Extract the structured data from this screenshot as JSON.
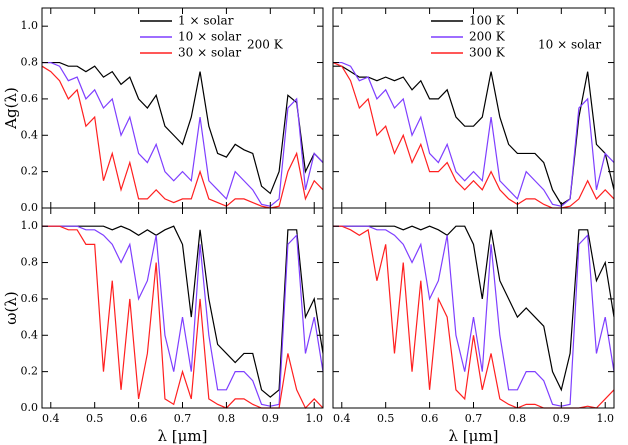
{
  "chart_data": [
    {
      "type": "line",
      "ylabel": "Ag(λ)",
      "annotation": "200 K",
      "legend": "upper center",
      "xlim": [
        0.38,
        1.02
      ],
      "ylim": [
        0,
        1.1
      ],
      "xticks": [
        0.4,
        0.5,
        0.6,
        0.7,
        0.8,
        0.9,
        {
          "value": 1,
          "label": "1.0"
        }
      ],
      "yticks": [
        {
          "value": 0,
          "label": "0.0"
        },
        0.2,
        0.4,
        0.6,
        0.8,
        {
          "value": 1,
          "label": "1.0"
        }
      ],
      "x": [
        0.38,
        0.4,
        0.42,
        0.44,
        0.46,
        0.48,
        0.5,
        0.52,
        0.54,
        0.56,
        0.58,
        0.6,
        0.62,
        0.64,
        0.66,
        0.68,
        0.7,
        0.72,
        0.74,
        0.76,
        0.78,
        0.8,
        0.82,
        0.84,
        0.86,
        0.88,
        0.9,
        0.92,
        0.94,
        0.96,
        0.98,
        1.0,
        1.02
      ],
      "series": [
        {
          "name": "1 × solar",
          "color": "#000000",
          "values": [
            0.8,
            0.8,
            0.8,
            0.78,
            0.78,
            0.75,
            0.78,
            0.72,
            0.75,
            0.68,
            0.72,
            0.6,
            0.55,
            0.62,
            0.45,
            0.4,
            0.35,
            0.5,
            0.75,
            0.45,
            0.3,
            0.28,
            0.35,
            0.32,
            0.3,
            0.12,
            0.08,
            0.2,
            0.62,
            0.58,
            0.2,
            0.3,
            0.25
          ]
        },
        {
          "name": "10 × solar",
          "color": "#7f3fff",
          "values": [
            0.8,
            0.8,
            0.78,
            0.7,
            0.72,
            0.6,
            0.65,
            0.55,
            0.6,
            0.4,
            0.5,
            0.3,
            0.25,
            0.35,
            0.2,
            0.15,
            0.2,
            0.15,
            0.5,
            0.15,
            0.1,
            0.05,
            0.2,
            0.15,
            0.1,
            0.02,
            0.01,
            0.05,
            0.55,
            0.6,
            0.1,
            0.3,
            0.25
          ]
        },
        {
          "name": "30 × solar",
          "color": "#ff2020",
          "values": [
            0.78,
            0.75,
            0.7,
            0.6,
            0.65,
            0.45,
            0.5,
            0.15,
            0.3,
            0.1,
            0.25,
            0.05,
            0.05,
            0.1,
            0.05,
            0.03,
            0.05,
            0.05,
            0.2,
            0.05,
            0.03,
            0.01,
            0.05,
            0.05,
            0.03,
            0.01,
            0,
            0.01,
            0.2,
            0.3,
            0.05,
            0.15,
            0.1
          ]
        }
      ]
    },
    {
      "type": "line",
      "annotation": "10 × solar",
      "legend": "upper center",
      "xlim": [
        0.38,
        1.02
      ],
      "ylim": [
        0,
        1.1
      ],
      "xticks": [
        0.4,
        0.5,
        0.6,
        0.7,
        0.8,
        0.9,
        {
          "value": 1,
          "label": "1.0"
        }
      ],
      "yticks": [
        0,
        0.2,
        0.4,
        0.6,
        0.8,
        1
      ],
      "x": [
        0.38,
        0.4,
        0.42,
        0.44,
        0.46,
        0.48,
        0.5,
        0.52,
        0.54,
        0.56,
        0.58,
        0.6,
        0.62,
        0.64,
        0.66,
        0.68,
        0.7,
        0.72,
        0.74,
        0.76,
        0.78,
        0.8,
        0.82,
        0.84,
        0.86,
        0.88,
        0.9,
        0.92,
        0.94,
        0.96,
        0.98,
        1.0,
        1.02
      ],
      "series": [
        {
          "name": "100 K",
          "color": "#000000",
          "values": [
            0.78,
            0.78,
            0.75,
            0.72,
            0.72,
            0.7,
            0.72,
            0.7,
            0.72,
            0.65,
            0.7,
            0.6,
            0.6,
            0.65,
            0.5,
            0.45,
            0.45,
            0.5,
            0.75,
            0.5,
            0.35,
            0.3,
            0.3,
            0.3,
            0.25,
            0.1,
            0.02,
            0.05,
            0.5,
            0.75,
            0.35,
            0.3,
            0.1
          ]
        },
        {
          "name": "200 K",
          "color": "#7f3fff",
          "values": [
            0.8,
            0.8,
            0.78,
            0.7,
            0.72,
            0.6,
            0.65,
            0.55,
            0.6,
            0.4,
            0.5,
            0.3,
            0.25,
            0.35,
            0.2,
            0.15,
            0.2,
            0.15,
            0.5,
            0.15,
            0.1,
            0.05,
            0.2,
            0.15,
            0.1,
            0.02,
            0.01,
            0.05,
            0.55,
            0.6,
            0.1,
            0.3,
            0.25
          ]
        },
        {
          "name": "300 K",
          "color": "#ff2020",
          "values": [
            0.8,
            0.78,
            0.7,
            0.55,
            0.6,
            0.4,
            0.45,
            0.3,
            0.4,
            0.25,
            0.35,
            0.2,
            0.2,
            0.25,
            0.15,
            0.1,
            0.15,
            0.1,
            0.2,
            0.1,
            0.05,
            0.02,
            0.05,
            0.05,
            0.02,
            0,
            0,
            0.01,
            0.05,
            0.15,
            0.05,
            0.1,
            0.05
          ]
        }
      ]
    },
    {
      "type": "line",
      "ylabel": "ω(λ)",
      "xlabel": "λ [μm]",
      "xlim": [
        0.38,
        1.02
      ],
      "ylim": [
        0,
        1.1
      ],
      "xticks": [
        0.4,
        0.5,
        0.6,
        0.7,
        0.8,
        0.9,
        {
          "value": 1,
          "label": "1.0"
        }
      ],
      "yticks": [
        {
          "value": 0,
          "label": "0.0"
        },
        0.2,
        0.4,
        0.6,
        0.8,
        {
          "value": 1,
          "label": "1.0"
        }
      ],
      "x": [
        0.38,
        0.4,
        0.42,
        0.44,
        0.46,
        0.48,
        0.5,
        0.52,
        0.54,
        0.56,
        0.58,
        0.6,
        0.62,
        0.64,
        0.66,
        0.68,
        0.7,
        0.72,
        0.74,
        0.76,
        0.78,
        0.8,
        0.82,
        0.84,
        0.86,
        0.88,
        0.9,
        0.92,
        0.94,
        0.96,
        0.98,
        1.0,
        1.02
      ],
      "series": [
        {
          "color": "#000000",
          "values": [
            1,
            1,
            1,
            1,
            1,
            1,
            1,
            1,
            0.98,
            1,
            0.98,
            0.95,
            0.98,
            0.95,
            0.98,
            1,
            0.9,
            0.5,
            0.98,
            0.6,
            0.35,
            0.3,
            0.25,
            0.3,
            0.3,
            0.1,
            0.06,
            0.1,
            0.98,
            0.98,
            0.5,
            0.6,
            0.3
          ]
        },
        {
          "color": "#7f3fff",
          "values": [
            1,
            1,
            1,
            1,
            1,
            0.98,
            0.98,
            0.95,
            0.9,
            0.8,
            0.9,
            0.6,
            0.7,
            0.95,
            0.4,
            0.2,
            0.5,
            0.2,
            0.9,
            0.4,
            0.1,
            0.1,
            0.2,
            0.2,
            0.15,
            0.02,
            0.01,
            0.02,
            0.9,
            0.95,
            0.3,
            0.5,
            0.2
          ]
        },
        {
          "color": "#ff2020",
          "values": [
            1,
            1,
            1,
            0.98,
            0.98,
            0.9,
            0.9,
            0.2,
            0.7,
            0.1,
            0.6,
            0.05,
            0.3,
            0.8,
            0.05,
            0.02,
            0.2,
            0.05,
            0.6,
            0.05,
            0.02,
            0,
            0.05,
            0.05,
            0.02,
            0,
            0,
            0,
            0.3,
            0.1,
            0,
            0.05,
            0
          ]
        }
      ]
    },
    {
      "type": "line",
      "xlabel": "λ [μm]",
      "xlim": [
        0.38,
        1.02
      ],
      "ylim": [
        0,
        1.1
      ],
      "xticks": [
        0.4,
        0.5,
        0.6,
        0.7,
        0.8,
        0.9,
        {
          "value": 1,
          "label": "1.0"
        }
      ],
      "yticks": [
        0,
        0.2,
        0.4,
        0.6,
        0.8,
        1
      ],
      "x": [
        0.38,
        0.4,
        0.42,
        0.44,
        0.46,
        0.48,
        0.5,
        0.52,
        0.54,
        0.56,
        0.58,
        0.6,
        0.62,
        0.64,
        0.66,
        0.68,
        0.7,
        0.72,
        0.74,
        0.76,
        0.78,
        0.8,
        0.82,
        0.84,
        0.86,
        0.88,
        0.9,
        0.92,
        0.94,
        0.96,
        0.98,
        1.0,
        1.02
      ],
      "series": [
        {
          "color": "#000000",
          "values": [
            1,
            1,
            1,
            1,
            1,
            1,
            1,
            1,
            0.98,
            1,
            0.98,
            1,
            0.98,
            0.95,
            1,
            1,
            0.9,
            0.6,
            0.98,
            0.7,
            0.6,
            0.5,
            0.55,
            0.5,
            0.45,
            0.2,
            0.1,
            0.3,
            0.98,
            0.98,
            0.7,
            0.8,
            0.5
          ]
        },
        {
          "color": "#7f3fff",
          "values": [
            1,
            1,
            1,
            1,
            1,
            0.98,
            0.98,
            0.95,
            0.9,
            0.8,
            0.9,
            0.6,
            0.7,
            0.95,
            0.4,
            0.2,
            0.5,
            0.2,
            0.9,
            0.4,
            0.1,
            0.1,
            0.2,
            0.2,
            0.15,
            0.02,
            0.01,
            0.02,
            0.9,
            0.95,
            0.3,
            0.5,
            0.2
          ]
        },
        {
          "color": "#ff2020",
          "values": [
            1,
            1,
            0.98,
            0.95,
            0.98,
            0.7,
            0.9,
            0.3,
            0.8,
            0.2,
            0.7,
            0.1,
            0.6,
            0.5,
            0.1,
            0.05,
            0.4,
            0.1,
            0.3,
            0.05,
            0.02,
            0,
            0.02,
            0.02,
            0,
            0,
            0,
            0,
            0,
            0.01,
            0,
            0.05,
            0.1
          ]
        }
      ]
    }
  ]
}
